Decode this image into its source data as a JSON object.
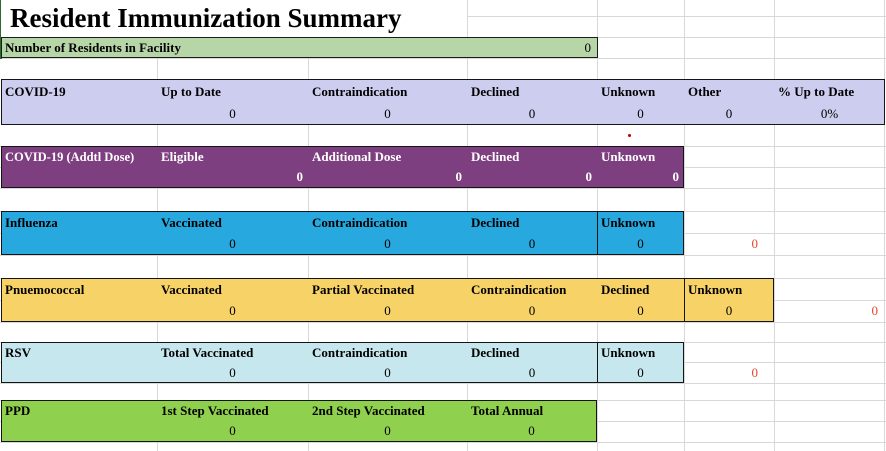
{
  "title": "Resident Immunization Summary",
  "residents": {
    "label": "Number of Residents in Facility",
    "value": "0"
  },
  "sections": [
    {
      "name": "COVID-19",
      "cols": [
        {
          "label": "Up to Date",
          "value": "0"
        },
        {
          "label": "Contraindication",
          "value": "0"
        },
        {
          "label": "Declined",
          "value": "0"
        },
        {
          "label": "Unknown",
          "value": "0"
        },
        {
          "label": "Other",
          "value": "0"
        },
        {
          "label": "% Up to Date",
          "value": "0%"
        }
      ]
    },
    {
      "name": "COVID-19 (Addtl Dose)",
      "cols": [
        {
          "label": "Eligible",
          "value": "0"
        },
        {
          "label": "Additional Dose",
          "value": "0"
        },
        {
          "label": "Declined",
          "value": "0"
        },
        {
          "label": "Unknown",
          "value": "0"
        }
      ]
    },
    {
      "name": "Influenza",
      "cols": [
        {
          "label": "Vaccinated",
          "value": "0"
        },
        {
          "label": "Contraindication",
          "value": "0"
        },
        {
          "label": "Declined",
          "value": "0"
        },
        {
          "label": "Unknown",
          "value": "0"
        }
      ]
    },
    {
      "name": "Pnuemococcal",
      "cols": [
        {
          "label": "Vaccinated",
          "value": "0"
        },
        {
          "label": "Partial Vaccinated",
          "value": "0"
        },
        {
          "label": "Contraindication",
          "value": "0"
        },
        {
          "label": "Declined",
          "value": "0"
        },
        {
          "label": "Unknown",
          "value": "0"
        }
      ]
    },
    {
      "name": "RSV",
      "cols": [
        {
          "label": "Total Vaccinated",
          "value": "0"
        },
        {
          "label": "Contraindication",
          "value": "0"
        },
        {
          "label": "Declined",
          "value": "0"
        },
        {
          "label": "Unknown",
          "value": "0"
        }
      ]
    },
    {
      "name": "PPD",
      "cols": [
        {
          "label": "1st Step Vaccinated",
          "value": "0"
        },
        {
          "label": "2nd Step Vaccinated",
          "value": "0"
        },
        {
          "label": "Total Annual",
          "value": "0"
        }
      ]
    }
  ],
  "stray_values": {
    "influenza_overflow": "0",
    "pneumococcal_overflow": "0",
    "rsv_overflow": "0"
  },
  "colors": {
    "residents_fill": "#b7d6a8",
    "covid19_fill": "#cdcdef",
    "covid19_addtl_fill": "#7d3f7f",
    "influenza_fill": "#27a9e0",
    "pneumococcal_fill": "#f7d266",
    "rsv_fill": "#c6e7ee",
    "ppd_fill": "#8fd04f",
    "stray_red": "#e8442b",
    "grid_line": "#d8d8d8",
    "edge_green": "#2a6b2f"
  }
}
